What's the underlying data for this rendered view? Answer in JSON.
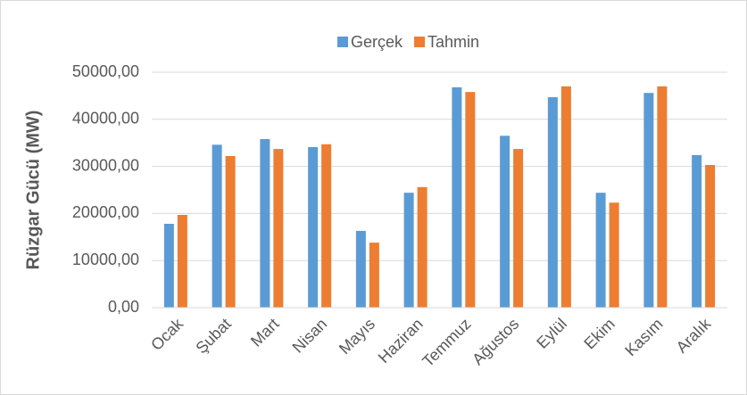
{
  "chart_data": {
    "type": "bar",
    "y_label": "Rüzgar Gücü (MW)",
    "categories": [
      "Ocak",
      "Şubat",
      "Mart",
      "Nisan",
      "Mayıs",
      "Haziran",
      "Temmuz",
      "Ağustos",
      "Eylül",
      "Ekim",
      "Kasım",
      "Aralık"
    ],
    "series": [
      {
        "name": "Gerçek",
        "color": "#5b9bd5",
        "values": [
          17800,
          34600,
          35800,
          34100,
          16300,
          24400,
          46800,
          36500,
          44700,
          24400,
          45600,
          32400
        ]
      },
      {
        "name": "Tahmin",
        "color": "#ed7d31",
        "values": [
          19700,
          32200,
          33700,
          34700,
          13800,
          25600,
          45800,
          33700,
          47000,
          22300,
          47000,
          30300
        ]
      }
    ],
    "ylim": [
      0,
      50000
    ],
    "yticks": [
      {
        "value": 0,
        "label": "0,00"
      },
      {
        "value": 10000,
        "label": "10000,00"
      },
      {
        "value": 20000,
        "label": "20000,00"
      },
      {
        "value": 30000,
        "label": "30000,00"
      },
      {
        "value": 40000,
        "label": "40000,00"
      },
      {
        "value": 50000,
        "label": "50000,00"
      }
    ],
    "grid": true,
    "legend": "top"
  }
}
